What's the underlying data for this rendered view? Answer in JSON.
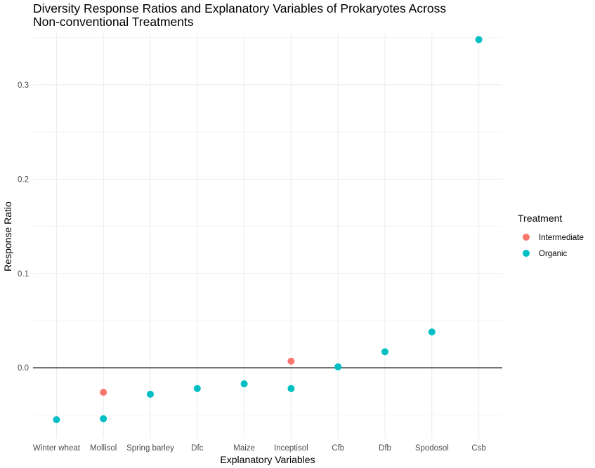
{
  "chart_data": {
    "type": "scatter",
    "title_lines": [
      "Diversity Response Ratios and Explanatory Variables of Prokaryotes Across",
      "Non-conventional Treatments"
    ],
    "xlabel": "Explanatory Variables",
    "ylabel": "Response Ratio",
    "categories": [
      "Winter wheat",
      "Mollisol",
      "Spring barley",
      "Dfc",
      "Maize",
      "Inceptisol",
      "Cfb",
      "Dfb",
      "Spodosol",
      "Csb"
    ],
    "yticks": [
      0.0,
      0.1,
      0.2,
      0.3
    ],
    "ytick_labels": [
      "0.0",
      "0.1",
      "0.2",
      "0.3"
    ],
    "ylim": [
      -0.075,
      0.355
    ],
    "reference_line": 0.0,
    "grid": true,
    "legend": {
      "title": "Treatment",
      "position": "right",
      "entries": [
        {
          "name": "Intermediate",
          "color": "#F8766D"
        },
        {
          "name": "Organic",
          "color": "#00BFC4"
        }
      ]
    },
    "series": [
      {
        "name": "Intermediate",
        "color": "#F8766D",
        "points": [
          {
            "x": "Mollisol",
            "y": -0.026
          },
          {
            "x": "Inceptisol",
            "y": 0.007
          }
        ]
      },
      {
        "name": "Organic",
        "color": "#00BFC4",
        "points": [
          {
            "x": "Winter wheat",
            "y": -0.055
          },
          {
            "x": "Mollisol",
            "y": -0.054
          },
          {
            "x": "Spring barley",
            "y": -0.028
          },
          {
            "x": "Dfc",
            "y": -0.022
          },
          {
            "x": "Maize",
            "y": -0.017
          },
          {
            "x": "Inceptisol",
            "y": -0.022
          },
          {
            "x": "Cfb",
            "y": 0.001
          },
          {
            "x": "Dfb",
            "y": 0.017
          },
          {
            "x": "Spodosol",
            "y": 0.038
          },
          {
            "x": "Csb",
            "y": 0.348
          }
        ]
      }
    ]
  }
}
